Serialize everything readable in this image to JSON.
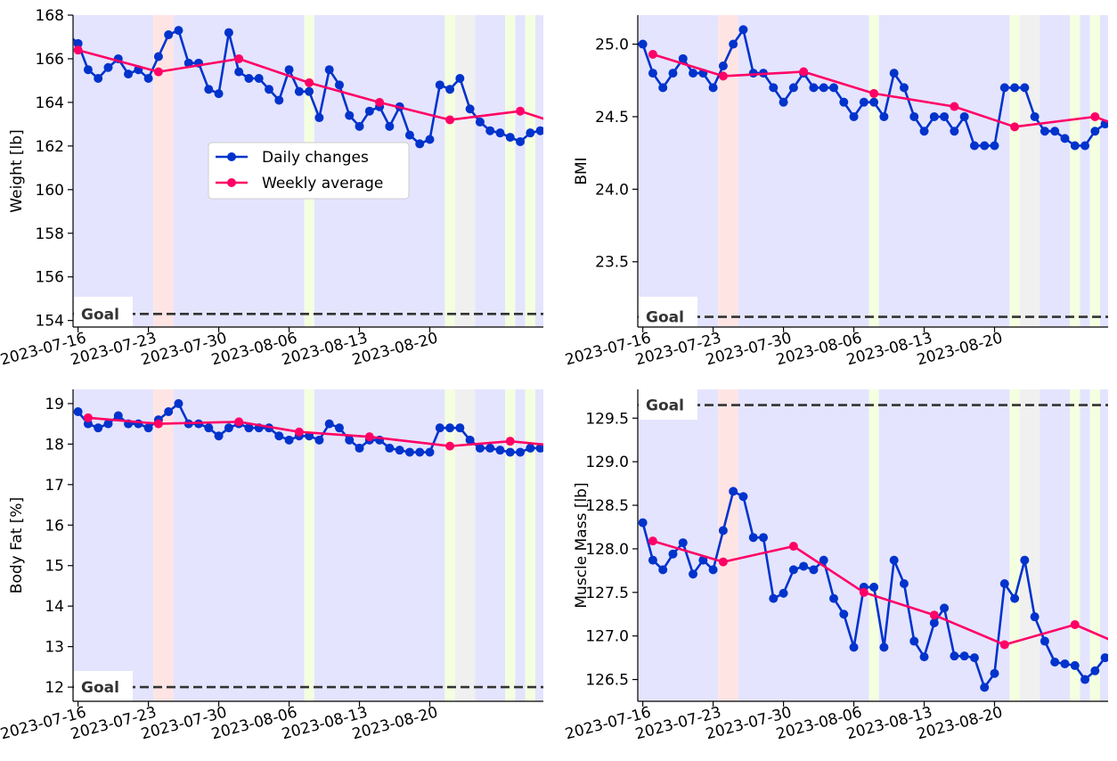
{
  "colors": {
    "daily": "#0033cc",
    "weekly": "#ff0066",
    "bg_blue": "#e4e4ff",
    "bg_red": "#ffe4e4",
    "bg_yellow": "#f4ffe0",
    "bg_gray": "#f0f0f0",
    "goal": "#333333"
  },
  "legend": {
    "daily": "Daily changes",
    "weekly": "Weekly average",
    "placement": "center"
  },
  "goal_label": "Goal",
  "chart_data": [
    {
      "type": "line",
      "ylabel": "Weight [lb]",
      "ylim": [
        153.7,
        168.0
      ],
      "yticks": [
        154,
        156,
        158,
        160,
        162,
        164,
        166,
        168
      ],
      "ytick_labels": [
        "154",
        "156",
        "158",
        "160",
        "162",
        "164",
        "166",
        "168"
      ],
      "xlim": [
        -0.5,
        46.3
      ],
      "xticks": [
        0,
        7,
        14,
        21,
        28,
        35
      ],
      "xtick_labels": [
        "2023-07-16",
        "2023-07-23",
        "2023-07-30",
        "2023-08-06",
        "2023-08-13",
        "2023-08-20"
      ],
      "goal": 154.3,
      "legend": true,
      "bands": [
        {
          "from": -0.5,
          "to": 7.5,
          "color": "bg_blue"
        },
        {
          "from": 7.5,
          "to": 9.5,
          "color": "bg_red"
        },
        {
          "from": 9.5,
          "to": 22.5,
          "color": "bg_blue"
        },
        {
          "from": 22.5,
          "to": 23.5,
          "color": "bg_yellow"
        },
        {
          "from": 23.5,
          "to": 36.5,
          "color": "bg_blue"
        },
        {
          "from": 36.5,
          "to": 37.5,
          "color": "bg_yellow"
        },
        {
          "from": 37.5,
          "to": 39.5,
          "color": "bg_gray"
        },
        {
          "from": 39.5,
          "to": 42.5,
          "color": "bg_blue"
        },
        {
          "from": 42.5,
          "to": 43.5,
          "color": "bg_yellow"
        },
        {
          "from": 43.5,
          "to": 44.5,
          "color": "bg_blue"
        },
        {
          "from": 44.5,
          "to": 45.5,
          "color": "bg_yellow"
        },
        {
          "from": 45.5,
          "to": 46.3,
          "color": "bg_blue"
        }
      ],
      "series": [
        {
          "name": "Daily changes",
          "x": [
            -1,
            0,
            1,
            2,
            3,
            4,
            5,
            6,
            7,
            8,
            9,
            10,
            11,
            12,
            13,
            14,
            15,
            16,
            17,
            18,
            19,
            20,
            21,
            22,
            23,
            24,
            25,
            26,
            27,
            28,
            29,
            30,
            31,
            32,
            33,
            34,
            35,
            36,
            37,
            38,
            39,
            40,
            41,
            42,
            43,
            44,
            45,
            46
          ],
          "values": [
            167.1,
            166.7,
            165.5,
            165.1,
            165.6,
            166.0,
            165.3,
            165.5,
            165.1,
            166.1,
            167.1,
            167.3,
            165.8,
            165.8,
            164.6,
            164.4,
            167.2,
            165.4,
            165.1,
            165.1,
            164.6,
            164.1,
            165.5,
            164.5,
            164.5,
            163.3,
            165.5,
            164.8,
            163.4,
            162.9,
            163.6,
            163.8,
            162.9,
            163.8,
            162.5,
            162.1,
            162.3,
            164.8,
            164.6,
            165.1,
            163.7,
            163.1,
            162.7,
            162.6,
            162.4,
            162.2,
            162.6,
            162.7
          ]
        },
        {
          "name": "Weekly average",
          "x": [
            0,
            8,
            16,
            23,
            30,
            37,
            44,
            48
          ],
          "values": [
            166.4,
            165.4,
            166.0,
            164.9,
            164.0,
            163.2,
            163.6,
            163.0
          ]
        }
      ]
    },
    {
      "type": "line",
      "ylabel": "BMI",
      "ylim": [
        23.05,
        25.2
      ],
      "yticks": [
        23.5,
        24.0,
        24.5,
        25.0
      ],
      "ytick_labels": [
        "23.5",
        "24.0",
        "24.5",
        "25.0"
      ],
      "xlim": [
        -0.5,
        46.3
      ],
      "xticks": [
        0,
        7,
        14,
        21,
        28,
        35
      ],
      "xtick_labels": [
        "2023-07-16",
        "2023-07-23",
        "2023-07-30",
        "2023-08-06",
        "2023-08-13",
        "2023-08-20"
      ],
      "goal": 23.12,
      "legend": false,
      "bands": [
        {
          "from": -0.5,
          "to": 7.5,
          "color": "bg_blue"
        },
        {
          "from": 7.5,
          "to": 9.5,
          "color": "bg_red"
        },
        {
          "from": 9.5,
          "to": 22.5,
          "color": "bg_blue"
        },
        {
          "from": 22.5,
          "to": 23.5,
          "color": "bg_yellow"
        },
        {
          "from": 23.5,
          "to": 36.5,
          "color": "bg_blue"
        },
        {
          "from": 36.5,
          "to": 37.5,
          "color": "bg_yellow"
        },
        {
          "from": 37.5,
          "to": 39.5,
          "color": "bg_gray"
        },
        {
          "from": 39.5,
          "to": 42.5,
          "color": "bg_blue"
        },
        {
          "from": 42.5,
          "to": 43.5,
          "color": "bg_yellow"
        },
        {
          "from": 43.5,
          "to": 44.5,
          "color": "bg_blue"
        },
        {
          "from": 44.5,
          "to": 45.5,
          "color": "bg_yellow"
        },
        {
          "from": 45.5,
          "to": 46.3,
          "color": "bg_blue"
        }
      ],
      "series": [
        {
          "name": "Daily changes",
          "x": [
            -1,
            0,
            1,
            2,
            3,
            4,
            5,
            6,
            7,
            8,
            9,
            10,
            11,
            12,
            13,
            14,
            15,
            16,
            17,
            18,
            19,
            20,
            21,
            22,
            23,
            24,
            25,
            26,
            27,
            28,
            29,
            30,
            31,
            32,
            33,
            34,
            35,
            36,
            37,
            38,
            39,
            40,
            41,
            42,
            43,
            44,
            45,
            46
          ],
          "values": [
            25.0,
            25.0,
            24.8,
            24.7,
            24.8,
            24.9,
            24.8,
            24.8,
            24.7,
            24.85,
            25.0,
            25.1,
            24.8,
            24.8,
            24.7,
            24.6,
            24.7,
            24.8,
            24.7,
            24.7,
            24.7,
            24.6,
            24.5,
            24.6,
            24.6,
            24.5,
            24.8,
            24.7,
            24.5,
            24.4,
            24.5,
            24.5,
            24.4,
            24.5,
            24.3,
            24.3,
            24.3,
            24.7,
            24.7,
            24.7,
            24.5,
            24.4,
            24.4,
            24.35,
            24.3,
            24.3,
            24.4,
            24.45
          ]
        },
        {
          "name": "Weekly average",
          "x": [
            1,
            8,
            16,
            23,
            31,
            37,
            45,
            48
          ],
          "values": [
            24.93,
            24.78,
            24.81,
            24.66,
            24.57,
            24.43,
            24.5,
            24.42
          ]
        }
      ]
    },
    {
      "type": "line",
      "ylabel": "Body Fat [%]",
      "ylim": [
        11.65,
        19.35
      ],
      "yticks": [
        12,
        13,
        14,
        15,
        16,
        17,
        18,
        19
      ],
      "ytick_labels": [
        "12",
        "13",
        "14",
        "15",
        "16",
        "17",
        "18",
        "19"
      ],
      "xlim": [
        -0.5,
        46.3
      ],
      "xticks": [
        0,
        7,
        14,
        21,
        28,
        35
      ],
      "xtick_labels": [
        "2023-07-16",
        "2023-07-23",
        "2023-07-30",
        "2023-08-06",
        "2023-08-13",
        "2023-08-20"
      ],
      "goal": 12.0,
      "legend": false,
      "bands": [
        {
          "from": -0.5,
          "to": 7.5,
          "color": "bg_blue"
        },
        {
          "from": 7.5,
          "to": 9.5,
          "color": "bg_red"
        },
        {
          "from": 9.5,
          "to": 22.5,
          "color": "bg_blue"
        },
        {
          "from": 22.5,
          "to": 23.5,
          "color": "bg_yellow"
        },
        {
          "from": 23.5,
          "to": 36.5,
          "color": "bg_blue"
        },
        {
          "from": 36.5,
          "to": 37.5,
          "color": "bg_yellow"
        },
        {
          "from": 37.5,
          "to": 39.5,
          "color": "bg_gray"
        },
        {
          "from": 39.5,
          "to": 42.5,
          "color": "bg_blue"
        },
        {
          "from": 42.5,
          "to": 43.5,
          "color": "bg_yellow"
        },
        {
          "from": 43.5,
          "to": 44.5,
          "color": "bg_blue"
        },
        {
          "from": 44.5,
          "to": 45.5,
          "color": "bg_yellow"
        },
        {
          "from": 45.5,
          "to": 46.3,
          "color": "bg_blue"
        }
      ],
      "series": [
        {
          "name": "Daily changes",
          "x": [
            0,
            1,
            2,
            3,
            4,
            5,
            6,
            7,
            8,
            9,
            10,
            11,
            12,
            13,
            14,
            15,
            16,
            17,
            18,
            19,
            20,
            21,
            22,
            23,
            24,
            25,
            26,
            27,
            28,
            29,
            30,
            31,
            32,
            33,
            34,
            35,
            36,
            37,
            38,
            39,
            40,
            41,
            42,
            43,
            44,
            45,
            46
          ],
          "values": [
            18.8,
            18.5,
            18.4,
            18.5,
            18.7,
            18.5,
            18.5,
            18.4,
            18.6,
            18.8,
            19.0,
            18.5,
            18.5,
            18.4,
            18.2,
            18.4,
            18.5,
            18.4,
            18.4,
            18.4,
            18.2,
            18.1,
            18.2,
            18.2,
            18.1,
            18.5,
            18.4,
            18.1,
            17.9,
            18.1,
            18.1,
            17.9,
            17.85,
            17.8,
            17.8,
            17.8,
            18.4,
            18.4,
            18.4,
            18.1,
            17.9,
            17.9,
            17.85,
            17.8,
            17.8,
            17.9,
            17.9
          ]
        },
        {
          "name": "Weekly average",
          "x": [
            1,
            8,
            16,
            22,
            29,
            37,
            43,
            48
          ],
          "values": [
            18.65,
            18.5,
            18.55,
            18.3,
            18.18,
            17.95,
            18.07,
            17.95
          ]
        }
      ]
    },
    {
      "type": "line",
      "ylabel": "Muscle Mass [lb]",
      "ylim": [
        126.25,
        129.83
      ],
      "yticks": [
        126.5,
        127.0,
        127.5,
        128.0,
        128.5,
        129.0,
        129.5
      ],
      "ytick_labels": [
        "126.5",
        "127.0",
        "127.5",
        "128.0",
        "128.5",
        "129.0",
        "129.5"
      ],
      "xlim": [
        -0.5,
        46.3
      ],
      "xticks": [
        0,
        7,
        14,
        21,
        28,
        35
      ],
      "xtick_labels": [
        "2023-07-16",
        "2023-07-23",
        "2023-07-30",
        "2023-08-06",
        "2023-08-13",
        "2023-08-20"
      ],
      "goal": 129.65,
      "legend": false,
      "bands": [
        {
          "from": -0.5,
          "to": 7.5,
          "color": "bg_blue"
        },
        {
          "from": 7.5,
          "to": 9.5,
          "color": "bg_red"
        },
        {
          "from": 9.5,
          "to": 22.5,
          "color": "bg_blue"
        },
        {
          "from": 22.5,
          "to": 23.5,
          "color": "bg_yellow"
        },
        {
          "from": 23.5,
          "to": 36.5,
          "color": "bg_blue"
        },
        {
          "from": 36.5,
          "to": 37.5,
          "color": "bg_yellow"
        },
        {
          "from": 37.5,
          "to": 39.5,
          "color": "bg_gray"
        },
        {
          "from": 39.5,
          "to": 42.5,
          "color": "bg_blue"
        },
        {
          "from": 42.5,
          "to": 43.5,
          "color": "bg_yellow"
        },
        {
          "from": 43.5,
          "to": 44.5,
          "color": "bg_blue"
        },
        {
          "from": 44.5,
          "to": 45.5,
          "color": "bg_yellow"
        },
        {
          "from": 45.5,
          "to": 46.3,
          "color": "bg_blue"
        }
      ],
      "series": [
        {
          "name": "Daily changes",
          "x": [
            0,
            1,
            2,
            3,
            4,
            5,
            6,
            7,
            8,
            9,
            10,
            11,
            12,
            13,
            14,
            15,
            16,
            17,
            18,
            19,
            20,
            21,
            22,
            23,
            24,
            25,
            26,
            27,
            28,
            29,
            30,
            31,
            32,
            33,
            34,
            35,
            36,
            37,
            38,
            39,
            40,
            41,
            42,
            43,
            44,
            45,
            46
          ],
          "values": [
            128.3,
            127.87,
            127.76,
            127.94,
            128.07,
            127.71,
            127.87,
            127.76,
            128.21,
            128.66,
            128.6,
            128.13,
            128.13,
            127.43,
            127.49,
            127.76,
            127.8,
            127.76,
            127.87,
            127.43,
            127.25,
            126.87,
            127.56,
            127.56,
            126.87,
            127.87,
            127.6,
            126.94,
            126.76,
            127.15,
            127.32,
            126.77,
            126.77,
            126.75,
            126.41,
            126.57,
            127.6,
            127.43,
            127.87,
            127.22,
            126.94,
            126.7,
            126.68,
            126.66,
            126.5,
            126.6,
            126.75
          ]
        },
        {
          "name": "Weekly average",
          "x": [
            1,
            8,
            15,
            22,
            29,
            36,
            43,
            48
          ],
          "values": [
            128.09,
            127.85,
            128.03,
            127.5,
            127.24,
            126.9,
            127.13,
            126.88
          ]
        }
      ]
    }
  ]
}
